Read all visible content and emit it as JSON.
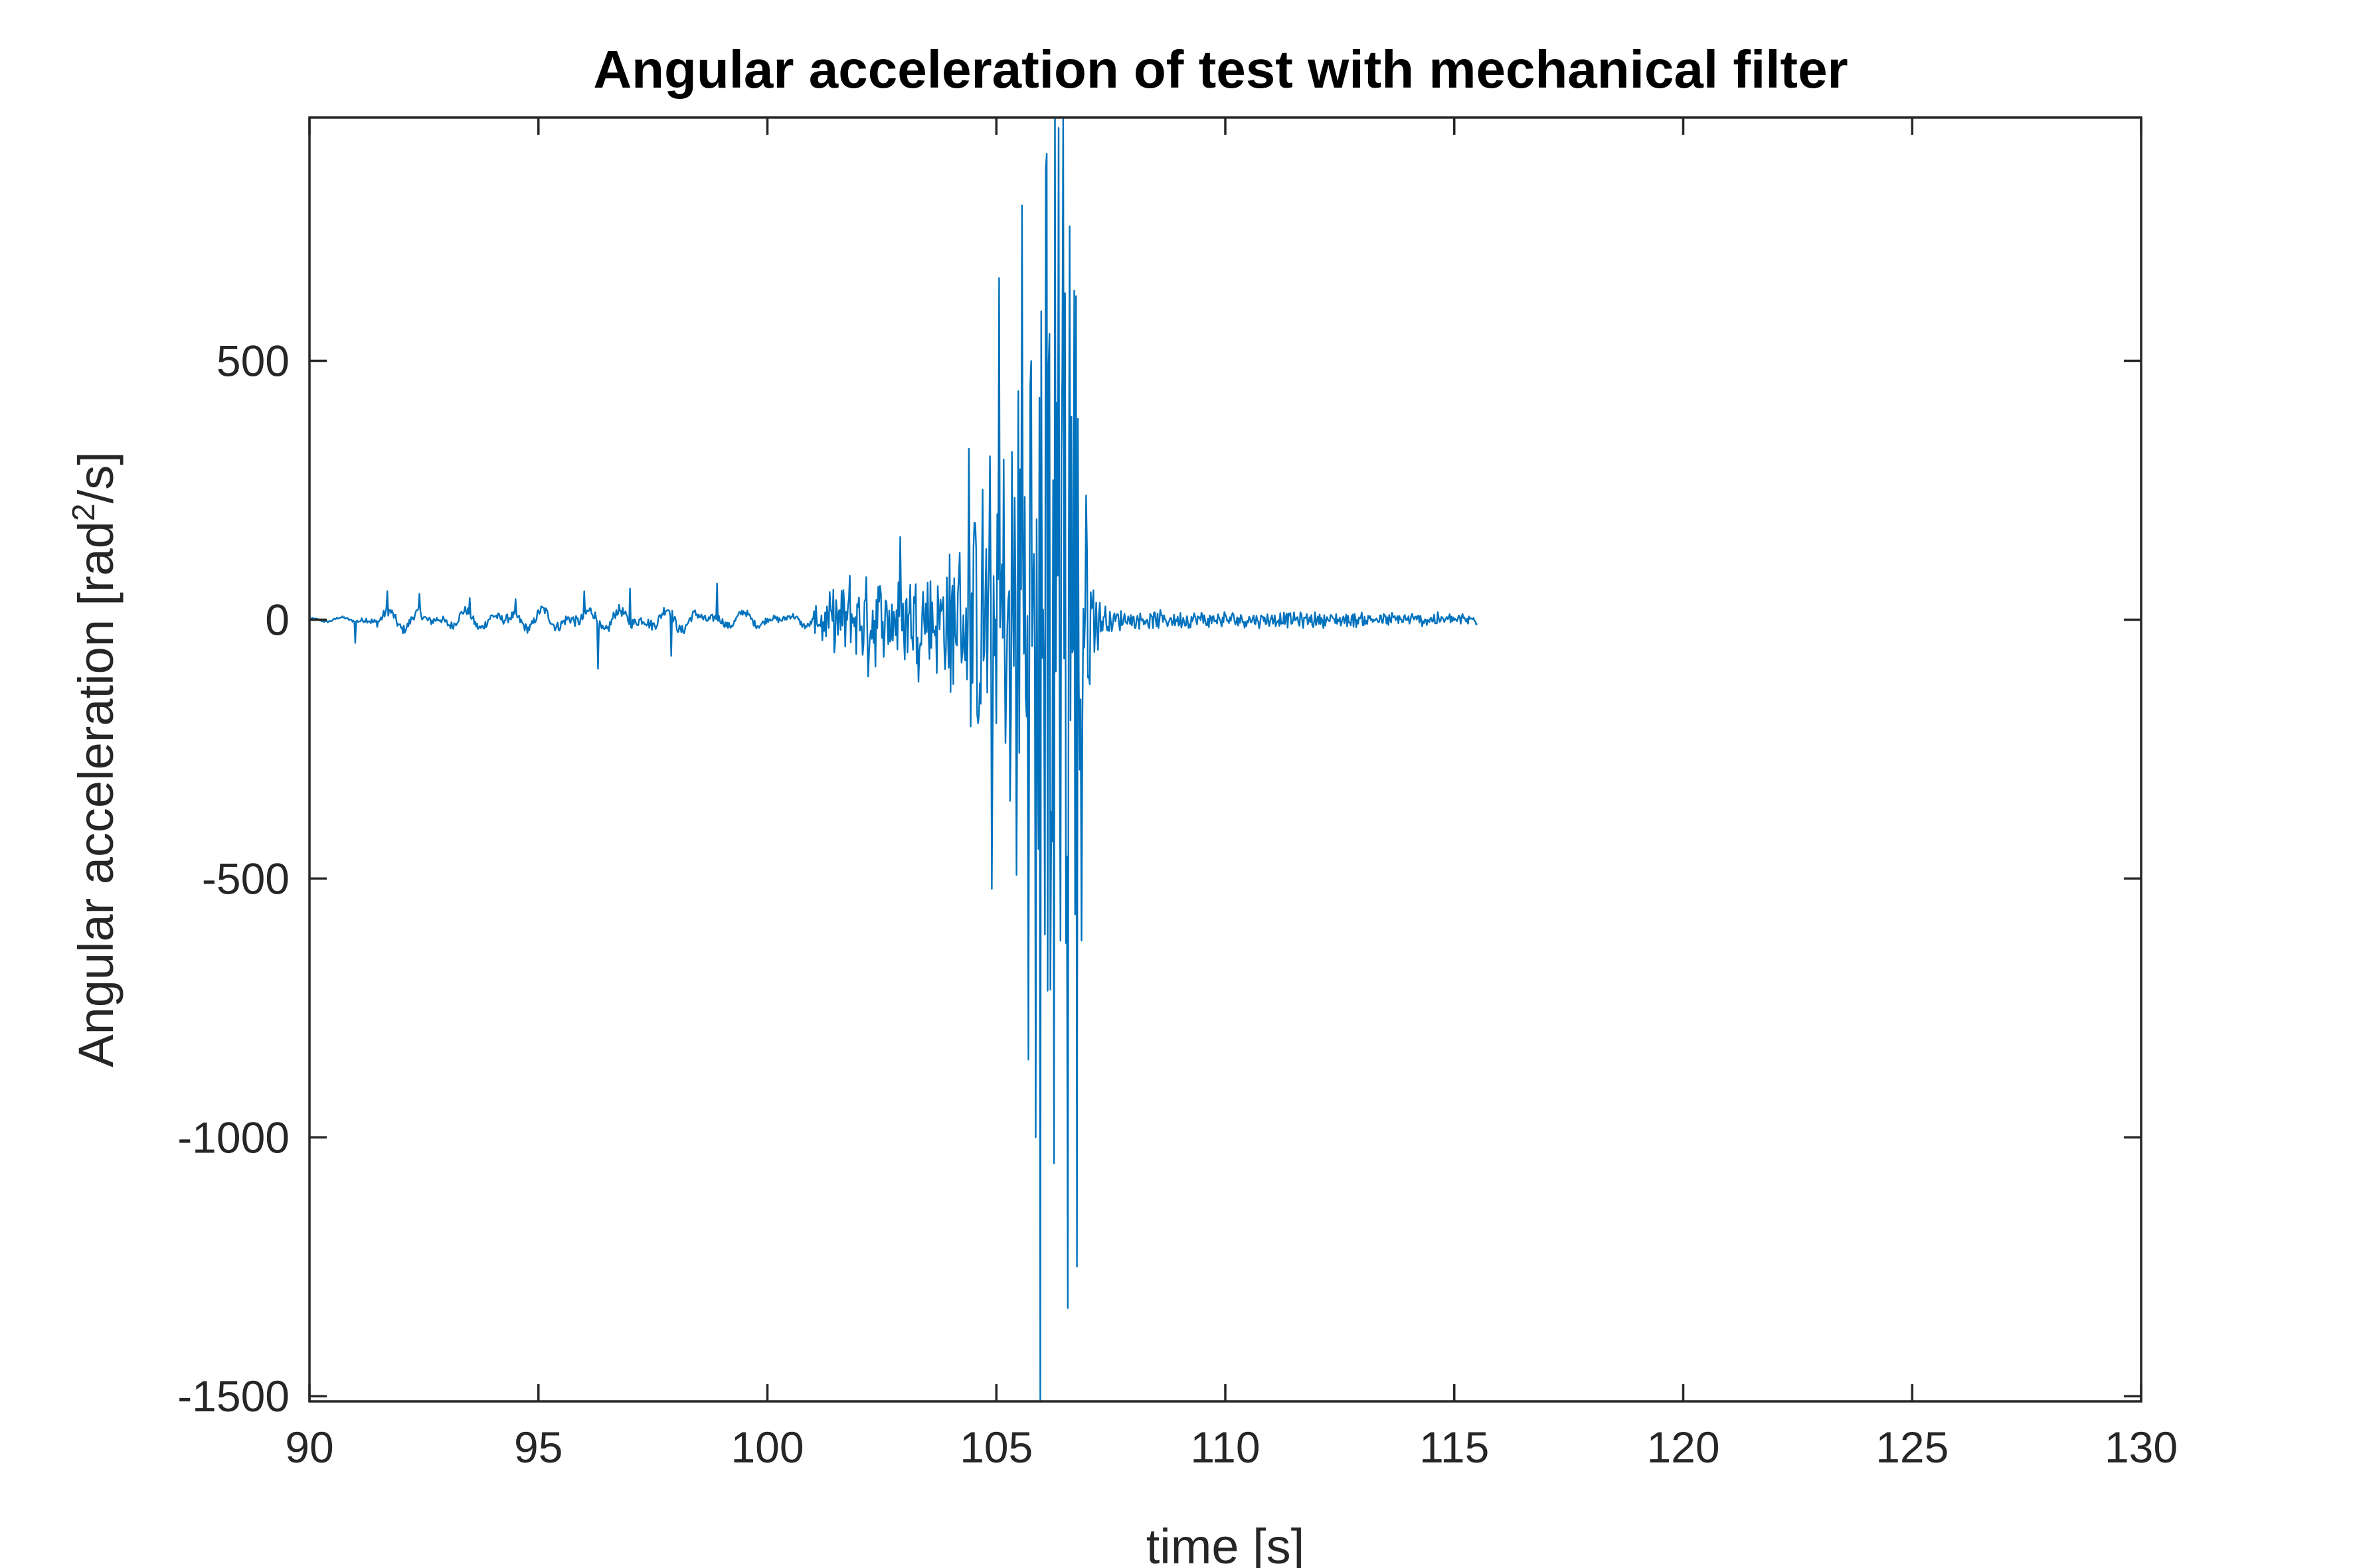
{
  "chart_data": {
    "type": "line",
    "title": "Angular acceleration of test with mechanical filter",
    "xlabel": "time [s]",
    "ylabel": {
      "main": "Angular acceleration [rad",
      "superscript": "2",
      "suffix": "/s]"
    },
    "xlim": [
      90,
      130
    ],
    "ylim": [
      -1510,
      970
    ],
    "xticks": [
      90,
      95,
      100,
      105,
      110,
      115,
      120,
      125,
      130
    ],
    "yticks": [
      -1500,
      -1000,
      -500,
      0,
      500
    ],
    "grid": false,
    "line_color": "#0072BD",
    "series": [
      {
        "sampling": {
          "x_start": 90.0,
          "x_end": 115.5,
          "dt": 0.02
        },
        "envelope": [
          [
            90.0,
            6
          ],
          [
            91.0,
            10
          ],
          [
            91.5,
            38
          ],
          [
            92.0,
            35
          ],
          [
            93.0,
            32
          ],
          [
            94.0,
            35
          ],
          [
            95.0,
            36
          ],
          [
            96.0,
            45
          ],
          [
            97.0,
            40
          ],
          [
            98.0,
            42
          ],
          [
            99.0,
            30
          ],
          [
            100.0,
            25
          ],
          [
            101.0,
            25
          ],
          [
            101.5,
            70
          ],
          [
            102.0,
            90
          ],
          [
            102.5,
            100
          ],
          [
            103.0,
            110
          ],
          [
            103.5,
            125
          ],
          [
            104.0,
            150
          ],
          [
            104.5,
            250
          ],
          [
            105.0,
            380
          ],
          [
            105.3,
            520
          ],
          [
            105.6,
            700
          ],
          [
            105.9,
            900
          ],
          [
            106.1,
            1100
          ],
          [
            106.3,
            1200
          ],
          [
            106.5,
            1100
          ],
          [
            106.7,
            900
          ],
          [
            106.9,
            500
          ],
          [
            107.1,
            120
          ],
          [
            107.4,
            28
          ],
          [
            108.0,
            20
          ],
          [
            110.0,
            18
          ],
          [
            112.0,
            17
          ],
          [
            115.5,
            15
          ]
        ],
        "spikes": [
          [
            91.0,
            -45
          ],
          [
            91.7,
            55
          ],
          [
            92.4,
            50
          ],
          [
            93.5,
            42
          ],
          [
            94.5,
            40
          ],
          [
            96.0,
            55
          ],
          [
            96.3,
            -95
          ],
          [
            97.0,
            60
          ],
          [
            97.9,
            -70
          ],
          [
            98.9,
            70
          ],
          [
            101.2,
            -40
          ],
          [
            101.8,
            85
          ],
          [
            102.2,
            -110
          ],
          [
            102.9,
            160
          ],
          [
            103.3,
            -120
          ],
          [
            104.0,
            -140
          ],
          [
            104.4,
            330
          ],
          [
            104.6,
            -200
          ],
          [
            104.9,
            -520
          ],
          [
            105.05,
            660
          ],
          [
            105.3,
            -350
          ],
          [
            105.55,
            800
          ],
          [
            105.7,
            -850
          ],
          [
            105.85,
            -1000
          ],
          [
            105.95,
            -1510
          ],
          [
            106.1,
            900
          ],
          [
            106.25,
            -1050
          ],
          [
            106.35,
            950
          ],
          [
            106.45,
            970
          ],
          [
            106.55,
            -1330
          ],
          [
            106.6,
            760
          ],
          [
            106.75,
            -1250
          ],
          [
            106.85,
            -620
          ],
          [
            106.95,
            240
          ]
        ]
      }
    ]
  }
}
